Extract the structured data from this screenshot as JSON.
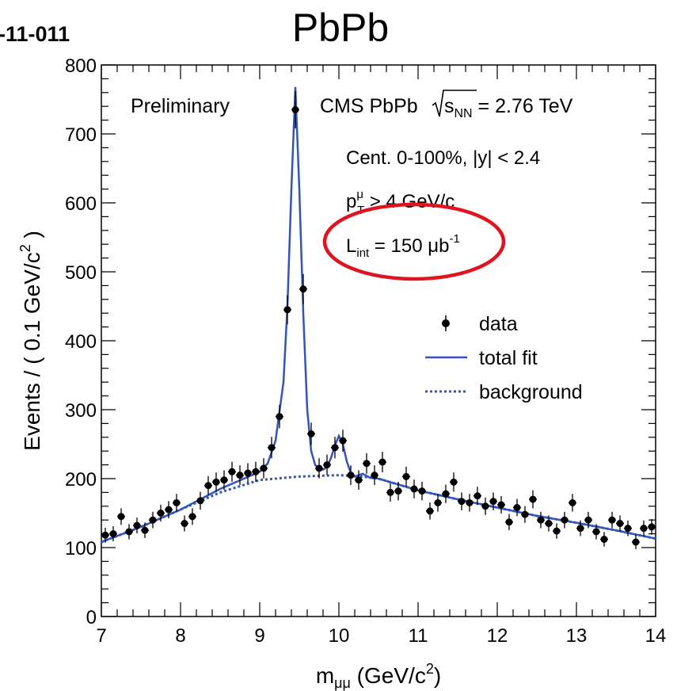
{
  "header": {
    "ref_fragment": "-11-011",
    "title": "PbPb"
  },
  "chart_data": {
    "type": "scatter",
    "xlabel": "m",
    "xlabel_sub": "μμ",
    "xlabel_unit_open": " (GeV/c",
    "xlabel_unit_sup": "2",
    "xlabel_unit_close": ")",
    "ylabel": "Events / ( 0.1 GeV/c",
    "ylabel_sup": "2",
    "ylabel_close": " )",
    "xlim": [
      7,
      14
    ],
    "ylim": [
      0,
      800
    ],
    "xticks": [
      7,
      8,
      9,
      10,
      11,
      12,
      13,
      14
    ],
    "yticks": [
      0,
      100,
      200,
      300,
      400,
      500,
      600,
      700,
      800
    ],
    "annotations": {
      "preliminary": "Preliminary",
      "experiment": "CMS PbPb",
      "sqrt_s_sub": "NN",
      "energy_value": " = 2.76 TeV",
      "centrality": "Cent. 0-100%, |y| < 2.4",
      "pt_base": "p",
      "pt_sup": "μ",
      "pt_sub": "T",
      "pt_value": " > 4 GeV/c",
      "lumi_base": "L",
      "lumi_sub": "int",
      "lumi_value": " = 150 μb",
      "lumi_sup": "-1"
    },
    "legend": {
      "placement": "right",
      "data": "data",
      "total_fit": "total fit",
      "background": "background"
    },
    "colors": {
      "fit": "#3355bb",
      "highlight": "#e0141e",
      "points": "#000000"
    },
    "series": [
      {
        "name": "data",
        "points": [
          [
            7.05,
            118
          ],
          [
            7.15,
            120
          ],
          [
            7.25,
            145
          ],
          [
            7.35,
            123
          ],
          [
            7.45,
            132
          ],
          [
            7.55,
            125
          ],
          [
            7.65,
            140
          ],
          [
            7.75,
            150
          ],
          [
            7.85,
            155
          ],
          [
            7.95,
            165
          ],
          [
            8.05,
            135
          ],
          [
            8.15,
            145
          ],
          [
            8.25,
            168
          ],
          [
            8.35,
            190
          ],
          [
            8.45,
            195
          ],
          [
            8.55,
            198
          ],
          [
            8.65,
            210
          ],
          [
            8.75,
            205
          ],
          [
            8.85,
            208
          ],
          [
            8.95,
            210
          ],
          [
            9.05,
            215
          ],
          [
            9.15,
            245
          ],
          [
            9.25,
            290
          ],
          [
            9.35,
            445
          ],
          [
            9.45,
            735
          ],
          [
            9.55,
            475
          ],
          [
            9.65,
            265
          ],
          [
            9.75,
            215
          ],
          [
            9.85,
            220
          ],
          [
            9.95,
            245
          ],
          [
            10.05,
            255
          ],
          [
            10.15,
            205
          ],
          [
            10.25,
            198
          ],
          [
            10.35,
            222
          ],
          [
            10.45,
            205
          ],
          [
            10.55,
            224
          ],
          [
            10.65,
            180
          ],
          [
            10.75,
            182
          ],
          [
            10.85,
            203
          ],
          [
            10.95,
            185
          ],
          [
            11.05,
            182
          ],
          [
            11.15,
            153
          ],
          [
            11.25,
            165
          ],
          [
            11.35,
            178
          ],
          [
            11.45,
            195
          ],
          [
            11.55,
            167
          ],
          [
            11.65,
            165
          ],
          [
            11.75,
            175
          ],
          [
            11.85,
            160
          ],
          [
            11.95,
            167
          ],
          [
            12.05,
            162
          ],
          [
            12.15,
            137
          ],
          [
            12.25,
            158
          ],
          [
            12.35,
            148
          ],
          [
            12.45,
            170
          ],
          [
            12.55,
            140
          ],
          [
            12.65,
            135
          ],
          [
            12.75,
            124
          ],
          [
            12.85,
            140
          ],
          [
            12.95,
            165
          ],
          [
            13.05,
            128
          ],
          [
            13.15,
            140
          ],
          [
            13.25,
            123
          ],
          [
            13.35,
            112
          ],
          [
            13.45,
            140
          ],
          [
            13.55,
            135
          ],
          [
            13.65,
            128
          ],
          [
            13.75,
            108
          ],
          [
            13.85,
            128
          ],
          [
            13.95,
            130
          ]
        ]
      },
      {
        "name": "total fit",
        "points": [
          [
            7.0,
            108
          ],
          [
            7.5,
            130
          ],
          [
            8.0,
            155
          ],
          [
            8.5,
            185
          ],
          [
            8.8,
            200
          ],
          [
            9.0,
            210
          ],
          [
            9.1,
            222
          ],
          [
            9.2,
            255
          ],
          [
            9.3,
            340
          ],
          [
            9.35,
            450
          ],
          [
            9.4,
            620
          ],
          [
            9.45,
            768
          ],
          [
            9.5,
            620
          ],
          [
            9.55,
            440
          ],
          [
            9.6,
            300
          ],
          [
            9.65,
            240
          ],
          [
            9.7,
            220
          ],
          [
            9.75,
            214
          ],
          [
            9.8,
            213
          ],
          [
            9.85,
            217
          ],
          [
            9.9,
            230
          ],
          [
            9.95,
            248
          ],
          [
            10.0,
            262
          ],
          [
            10.05,
            250
          ],
          [
            10.1,
            225
          ],
          [
            10.15,
            208
          ],
          [
            10.2,
            203
          ],
          [
            10.3,
            207
          ],
          [
            10.4,
            201
          ],
          [
            10.5,
            200
          ],
          [
            11.0,
            183
          ],
          [
            11.5,
            170
          ],
          [
            12.0,
            158
          ],
          [
            12.5,
            146
          ],
          [
            13.0,
            136
          ],
          [
            13.5,
            125
          ],
          [
            14.0,
            113
          ]
        ]
      },
      {
        "name": "background",
        "points": [
          [
            7.0,
            108
          ],
          [
            7.5,
            130
          ],
          [
            8.0,
            155
          ],
          [
            8.5,
            180
          ],
          [
            9.0,
            198
          ],
          [
            9.5,
            203
          ],
          [
            10.0,
            205
          ],
          [
            10.3,
            203
          ],
          [
            10.5,
            200
          ],
          [
            11.0,
            183
          ],
          [
            11.5,
            170
          ],
          [
            12.0,
            158
          ],
          [
            12.5,
            146
          ],
          [
            13.0,
            136
          ],
          [
            13.5,
            125
          ],
          [
            14.0,
            113
          ]
        ]
      }
    ]
  }
}
